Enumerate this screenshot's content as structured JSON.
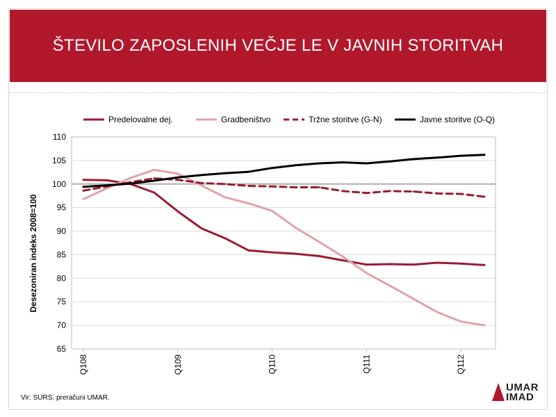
{
  "title": "ŠTEVILO ZAPOSLENIH VEČJE LE V JAVNIH STORITVAH",
  "source": "Vir: SURS, preračuni UMAR.",
  "logo": {
    "line1": "UMAR",
    "line2": "IMAD"
  },
  "colors": {
    "band": "#b1182c",
    "reference_line": "#9a9a9a",
    "grid": "#dcdcdc"
  },
  "chart_data": {
    "type": "line",
    "ylabel": "Desezoniran indeks 2008=100",
    "ylim": [
      65,
      110
    ],
    "yticks": [
      65,
      70,
      75,
      80,
      85,
      90,
      95,
      100,
      105,
      110
    ],
    "reference_line": 100,
    "grid": true,
    "legend_placement": "top",
    "x_tick_labels": [
      {
        "label": "Q108",
        "index": 0
      },
      {
        "label": "Q109",
        "index": 4
      },
      {
        "label": "Q110",
        "index": 8
      },
      {
        "label": "Q111",
        "index": 12
      },
      {
        "label": "Q112",
        "index": 16
      }
    ],
    "n_points": 18,
    "series": [
      {
        "name": "Predelovalne dej.",
        "color": "#9b1b30",
        "dash": "solid",
        "values": [
          100.9,
          100.8,
          100.0,
          98.2,
          94.2,
          90.6,
          88.5,
          85.9,
          85.5,
          85.2,
          84.7,
          83.8,
          82.9,
          83.0,
          82.9,
          83.3,
          83.1,
          82.8
        ]
      },
      {
        "name": "Gradbeništvo",
        "color": "#e0a3a6",
        "dash": "solid",
        "values": [
          96.8,
          99.1,
          101.3,
          103.0,
          102.2,
          99.7,
          97.2,
          95.9,
          94.3,
          90.7,
          87.7,
          84.6,
          81.1,
          78.4,
          75.6,
          72.8,
          70.8,
          70.0
        ]
      },
      {
        "name": "Tržne storitve (G-N)",
        "color": "#9b1b30",
        "dash": "dashed",
        "values": [
          98.6,
          99.5,
          100.4,
          101.2,
          100.9,
          100.2,
          100.0,
          99.6,
          99.5,
          99.3,
          99.3,
          98.5,
          98.1,
          98.5,
          98.4,
          98.0,
          97.9,
          97.3
        ]
      },
      {
        "name": "Javne storitve (O-Q)",
        "color": "#000000",
        "dash": "solid",
        "values": [
          99.4,
          99.7,
          100.1,
          100.7,
          101.4,
          101.9,
          102.3,
          102.6,
          103.4,
          104.0,
          104.4,
          104.6,
          104.4,
          104.8,
          105.3,
          105.6,
          106.0,
          106.2
        ]
      }
    ]
  }
}
